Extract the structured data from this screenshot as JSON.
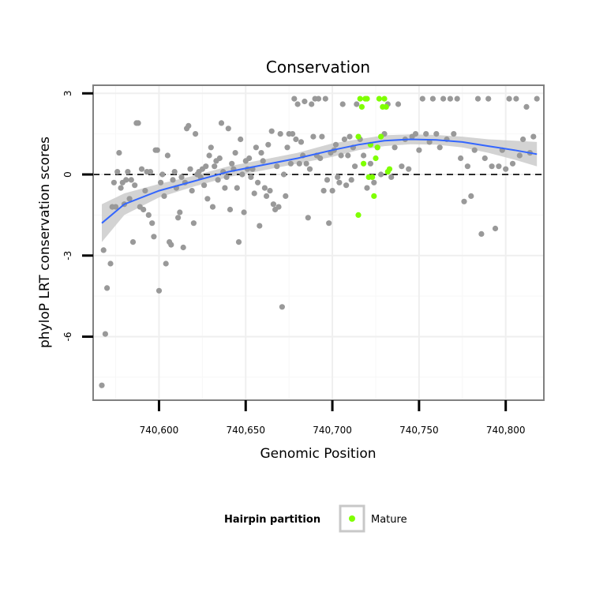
{
  "chart_data": {
    "type": "scatter",
    "title": "Conservation",
    "xlabel": "Genomic Position",
    "ylabel": "phyloP LRT conservation scores",
    "xlim": [
      740562,
      740822
    ],
    "ylim": [
      -8.35,
      3.3
    ],
    "x_ticks": [
      740600,
      740650,
      740700,
      740750,
      740800
    ],
    "x_tick_labels": [
      "740,600",
      "740,650",
      "740,700",
      "740,750",
      "740,800"
    ],
    "y_ticks": [
      -6,
      -3,
      0,
      3
    ],
    "y_tick_labels": [
      "-6",
      "-3",
      "0",
      "3"
    ],
    "grid": true,
    "reference_line": {
      "y": 0,
      "style": "dashed"
    },
    "legend": {
      "title": "Hairpin partition",
      "placement": "bottom",
      "entries": [
        "Mature"
      ]
    },
    "colors": {
      "other": "#999999",
      "mature": "#7fff00",
      "smooth": "#3366ff",
      "ribbon": "#c8c8c8"
    },
    "series": [
      {
        "name": "",
        "color": "#999999",
        "points": [
          [
            740567,
            -7.8
          ],
          [
            740568,
            -2.8
          ],
          [
            740569,
            -5.9
          ],
          [
            740570,
            -4.2
          ],
          [
            740572,
            -3.3
          ],
          [
            740573,
            -1.2
          ],
          [
            740574,
            -0.3
          ],
          [
            740575,
            -1.2
          ],
          [
            740576,
            0.1
          ],
          [
            740577,
            0.8
          ],
          [
            740578,
            -0.5
          ],
          [
            740579,
            -0.3
          ],
          [
            740580,
            -1.1
          ],
          [
            740581,
            -0.2
          ],
          [
            740582,
            0.1
          ],
          [
            740583,
            -0.9
          ],
          [
            740584,
            -0.2
          ],
          [
            740585,
            -2.5
          ],
          [
            740586,
            -0.4
          ],
          [
            740587,
            1.9
          ],
          [
            740588,
            1.9
          ],
          [
            740589,
            -1.2
          ],
          [
            740590,
            0.2
          ],
          [
            740591,
            -1.3
          ],
          [
            740592,
            -0.6
          ],
          [
            740593,
            0.1
          ],
          [
            740594,
            -1.5
          ],
          [
            740595,
            0.1
          ],
          [
            740596,
            -1.8
          ],
          [
            740597,
            -2.3
          ],
          [
            740598,
            0.9
          ],
          [
            740599,
            0.9
          ],
          [
            740600,
            -4.3
          ],
          [
            740601,
            -0.3
          ],
          [
            740602,
            0.0
          ],
          [
            740603,
            -0.8
          ],
          [
            740604,
            -3.3
          ],
          [
            740605,
            0.7
          ],
          [
            740606,
            -2.5
          ],
          [
            740607,
            -2.6
          ],
          [
            740608,
            -0.2
          ],
          [
            740609,
            0.1
          ],
          [
            740610,
            -0.5
          ],
          [
            740611,
            -1.6
          ],
          [
            740612,
            -1.4
          ],
          [
            740613,
            -0.1
          ],
          [
            740614,
            -2.7
          ],
          [
            740615,
            -0.3
          ],
          [
            740616,
            1.7
          ],
          [
            740617,
            1.8
          ],
          [
            740618,
            0.2
          ],
          [
            740619,
            -0.6
          ],
          [
            740620,
            -1.8
          ],
          [
            740621,
            1.5
          ],
          [
            740622,
            0.0
          ],
          [
            740623,
            0.1
          ],
          [
            740624,
            -0.1
          ],
          [
            740625,
            0.2
          ],
          [
            740626,
            -0.4
          ],
          [
            740627,
            0.3
          ],
          [
            740628,
            -0.9
          ],
          [
            740629,
            0.7
          ],
          [
            740630,
            1.0
          ],
          [
            740631,
            -1.2
          ],
          [
            740632,
            0.3
          ],
          [
            740633,
            0.5
          ],
          [
            740634,
            -0.2
          ],
          [
            740635,
            0.6
          ],
          [
            740636,
            1.9
          ],
          [
            740637,
            0.1
          ],
          [
            740638,
            -0.5
          ],
          [
            740639,
            -0.1
          ],
          [
            740640,
            1.7
          ],
          [
            740641,
            -1.3
          ],
          [
            740642,
            0.4
          ],
          [
            740643,
            0.2
          ],
          [
            740644,
            0.8
          ],
          [
            740645,
            -0.5
          ],
          [
            740646,
            -2.5
          ],
          [
            740647,
            1.3
          ],
          [
            740648,
            0.0
          ],
          [
            740649,
            -1.4
          ],
          [
            740650,
            0.5
          ],
          [
            740651,
            0.2
          ],
          [
            740652,
            0.6
          ],
          [
            740653,
            -0.1
          ],
          [
            740654,
            0.2
          ],
          [
            740655,
            -0.7
          ],
          [
            740656,
            1.0
          ],
          [
            740657,
            -0.3
          ],
          [
            740658,
            -1.9
          ],
          [
            740659,
            0.8
          ],
          [
            740660,
            0.5
          ],
          [
            740661,
            -0.5
          ],
          [
            740662,
            -0.8
          ],
          [
            740663,
            1.1
          ],
          [
            740664,
            -0.6
          ],
          [
            740665,
            1.6
          ],
          [
            740666,
            -1.1
          ],
          [
            740667,
            -1.3
          ],
          [
            740668,
            0.3
          ],
          [
            740669,
            -1.2
          ],
          [
            740670,
            1.5
          ],
          [
            740671,
            -4.9
          ],
          [
            740672,
            0.0
          ],
          [
            740673,
            -0.8
          ],
          [
            740674,
            1.0
          ],
          [
            740675,
            1.5
          ],
          [
            740676,
            0.4
          ],
          [
            740677,
            1.5
          ],
          [
            740678,
            2.8
          ],
          [
            740679,
            1.3
          ],
          [
            740680,
            2.6
          ],
          [
            740681,
            0.4
          ],
          [
            740682,
            1.2
          ],
          [
            740683,
            0.7
          ],
          [
            740684,
            2.7
          ],
          [
            740685,
            0.4
          ],
          [
            740686,
            -1.6
          ],
          [
            740687,
            0.2
          ],
          [
            740688,
            2.6
          ],
          [
            740689,
            1.4
          ],
          [
            740690,
            2.8
          ],
          [
            740691,
            0.7
          ],
          [
            740692,
            2.8
          ],
          [
            740693,
            0.6
          ],
          [
            740694,
            1.4
          ],
          [
            740695,
            -0.6
          ],
          [
            740696,
            2.8
          ],
          [
            740697,
            -0.2
          ],
          [
            740698,
            -1.8
          ],
          [
            740699,
            0.8
          ],
          [
            740700,
            -0.6
          ],
          [
            740701,
            0.9
          ],
          [
            740702,
            1.1
          ],
          [
            740703,
            -0.1
          ],
          [
            740704,
            -0.3
          ],
          [
            740705,
            0.7
          ],
          [
            740706,
            2.6
          ],
          [
            740707,
            1.3
          ],
          [
            740708,
            -0.4
          ],
          [
            740709,
            0.7
          ],
          [
            740710,
            1.4
          ],
          [
            740711,
            -0.2
          ],
          [
            740712,
            1.0
          ],
          [
            740713,
            0.3
          ],
          [
            740714,
            2.6
          ],
          [
            740716,
            1.3
          ],
          [
            740718,
            0.7
          ],
          [
            740720,
            -0.5
          ],
          [
            740722,
            0.4
          ],
          [
            740724,
            -0.3
          ],
          [
            740726,
            1.0
          ],
          [
            740728,
            0.0
          ],
          [
            740730,
            1.5
          ],
          [
            740732,
            2.6
          ],
          [
            740734,
            -0.1
          ],
          [
            740736,
            1.0
          ],
          [
            740738,
            2.6
          ],
          [
            740740,
            0.3
          ],
          [
            740742,
            1.3
          ],
          [
            740744,
            0.2
          ],
          [
            740746,
            1.4
          ],
          [
            740748,
            1.5
          ],
          [
            740750,
            0.9
          ],
          [
            740752,
            2.8
          ],
          [
            740754,
            1.5
          ],
          [
            740756,
            1.2
          ],
          [
            740758,
            2.8
          ],
          [
            740760,
            1.5
          ],
          [
            740762,
            1.0
          ],
          [
            740764,
            2.8
          ],
          [
            740766,
            1.3
          ],
          [
            740768,
            2.8
          ],
          [
            740770,
            1.5
          ],
          [
            740772,
            2.8
          ],
          [
            740774,
            0.6
          ],
          [
            740776,
            -1.0
          ],
          [
            740778,
            0.3
          ],
          [
            740780,
            -0.8
          ],
          [
            740782,
            0.9
          ],
          [
            740784,
            2.8
          ],
          [
            740786,
            -2.2
          ],
          [
            740788,
            0.6
          ],
          [
            740790,
            2.8
          ],
          [
            740792,
            0.3
          ],
          [
            740794,
            -2.0
          ],
          [
            740796,
            0.3
          ],
          [
            740798,
            0.9
          ],
          [
            740800,
            0.2
          ],
          [
            740802,
            2.8
          ],
          [
            740804,
            0.4
          ],
          [
            740806,
            2.8
          ],
          [
            740808,
            0.7
          ],
          [
            740810,
            1.3
          ],
          [
            740812,
            2.5
          ],
          [
            740814,
            0.8
          ],
          [
            740816,
            1.4
          ],
          [
            740818,
            2.8
          ]
        ]
      },
      {
        "name": "Mature",
        "color": "#7fff00",
        "points": [
          [
            740715,
            1.4
          ],
          [
            740715,
            -1.5
          ],
          [
            740716,
            2.8
          ],
          [
            740717,
            2.5
          ],
          [
            740718,
            0.4
          ],
          [
            740719,
            2.8
          ],
          [
            740720,
            2.8
          ],
          [
            740721,
            -0.1
          ],
          [
            740722,
            1.1
          ],
          [
            740723,
            -0.1
          ],
          [
            740724,
            -0.8
          ],
          [
            740725,
            0.6
          ],
          [
            740726,
            1.0
          ],
          [
            740727,
            2.8
          ],
          [
            740728,
            1.4
          ],
          [
            740729,
            2.5
          ],
          [
            740730,
            2.8
          ],
          [
            740731,
            2.5
          ],
          [
            740732,
            0.1
          ],
          [
            740733,
            0.2
          ]
        ]
      }
    ],
    "smooth": {
      "x": [
        740567,
        740580,
        740600,
        740620,
        740640,
        740660,
        740680,
        740700,
        740715,
        740730,
        740745,
        740760,
        740775,
        740790,
        740805,
        740818
      ],
      "y": [
        -1.8,
        -1.1,
        -0.6,
        -0.25,
        0.1,
        0.35,
        0.6,
        0.9,
        1.1,
        1.25,
        1.3,
        1.28,
        1.2,
        1.05,
        0.9,
        0.75
      ],
      "lower": [
        -2.5,
        -1.5,
        -0.85,
        -0.45,
        -0.1,
        0.15,
        0.4,
        0.65,
        0.9,
        1.05,
        1.12,
        1.1,
        1.0,
        0.8,
        0.55,
        0.3
      ],
      "upper": [
        -1.1,
        -0.7,
        -0.35,
        -0.05,
        0.3,
        0.55,
        0.8,
        1.15,
        1.3,
        1.45,
        1.48,
        1.46,
        1.4,
        1.3,
        1.25,
        1.2
      ]
    }
  }
}
